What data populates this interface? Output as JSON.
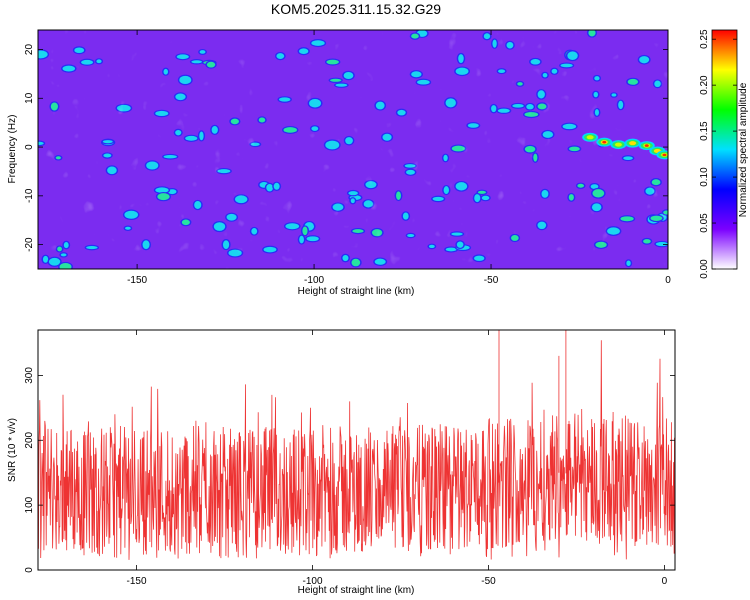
{
  "title": "KOM5.2025.311.15.32.G29",
  "chart_data": [
    {
      "type": "heatmap",
      "xlabel": "Height of straight line (km)",
      "ylabel": "Frequency (Hz)",
      "xlim": [
        -178,
        0
      ],
      "ylim": [
        -25,
        24
      ],
      "xticks": [
        -150,
        -100,
        -50,
        0
      ],
      "yticks": [
        -20,
        -10,
        0,
        10,
        20
      ],
      "colorbar": {
        "label": "Normalized spectral amplitude",
        "range": [
          0,
          0.26
        ],
        "ticks": [
          "0.00",
          "0.05",
          "0.10",
          "0.15",
          "0.20",
          "0.25"
        ],
        "colormap": [
          "#ffffff",
          "#7b00ff",
          "#0000ff",
          "#00e0ff",
          "#00ff00",
          "#ffff00",
          "#ff0000"
        ]
      },
      "features": [
        {
          "label": "",
          "x_range": [
            -27,
            -1
          ],
          "y_range": [
            -3,
            4
          ],
          "max_value": 0.25
        }
      ]
    },
    {
      "type": "line",
      "xlabel": "Height of straight line (km)",
      "ylabel": "SNR (10 * v/v)",
      "xlim": [
        -178,
        3
      ],
      "ylim": [
        0,
        370
      ],
      "xticks": [
        -150,
        -100,
        -50,
        0
      ],
      "yticks": [
        0,
        100,
        200,
        300
      ],
      "color": "#ee3333",
      "series": [
        {
          "name": "",
          "x": [
            -178,
            -160,
            -140,
            -120,
            -100,
            -80,
            -60,
            -40,
            -30,
            -20,
            -10,
            0,
            3
          ],
          "y": [
            130,
            120,
            125,
            118,
            122,
            120,
            125,
            140,
            150,
            145,
            140,
            135,
            130
          ]
        }
      ],
      "noise_band_percentiles": {
        "p5": 45,
        "p50": 120,
        "p95": 230
      },
      "peaks": [
        {
          "x": -28,
          "y": 370
        },
        {
          "x": -47,
          "y": 370
        },
        {
          "x": -30,
          "y": 330
        }
      ]
    }
  ]
}
